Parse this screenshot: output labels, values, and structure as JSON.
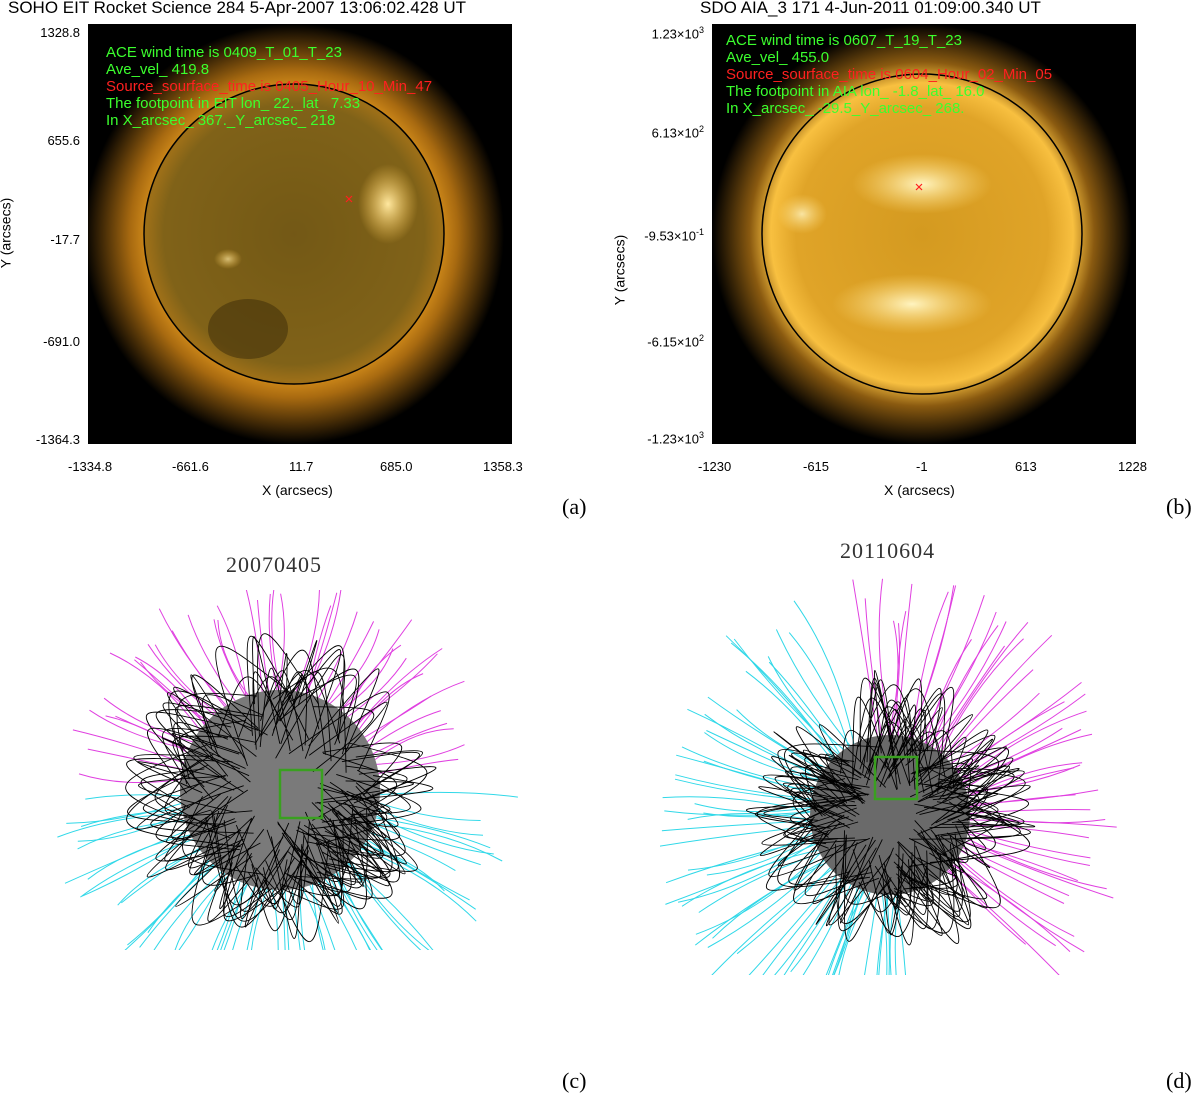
{
  "panel_a": {
    "title": "SOHO EIT Rocket Science 284  5-Apr-2007 13:06:02.428 UT",
    "overlay": [
      {
        "text": "ACE wind time is 0409_T_01_T_23",
        "color": "#3cff2e"
      },
      {
        "text": "Ave_vel_ 419.8",
        "color": "#3cff2e"
      },
      {
        "text": "Source_sourface_time is 0405_Hour_10_Min_47",
        "color": "#ff2020"
      },
      {
        "text": "The footpoint in EIT lon_ 22._lat_ 7.33",
        "color": "#3cff2e"
      },
      {
        "text": "In X_arcsec_ 367._Y_arcsec_ 218",
        "color": "#3cff2e"
      }
    ],
    "y_ticks": [
      "1328.8",
      "655.6",
      "-17.7",
      "-691.0",
      "-1364.3"
    ],
    "x_ticks": [
      "-1334.8",
      "-661.6",
      "11.7",
      "685.0",
      "1358.3"
    ],
    "xlabel": "X (arcsecs)",
    "ylabel": "Y (arcsecs)",
    "letter": "(a)",
    "colors": {
      "sun_core": "#8a6a1a",
      "corona": "#e8a020"
    }
  },
  "panel_b": {
    "title": "SDO AIA_3 171  4-Jun-2011 01:09:00.340 UT",
    "overlay": [
      {
        "text": "ACE wind time is 0607_T_19_T_23",
        "color": "#3cff2e"
      },
      {
        "text": "Ave_vel_ 455.0",
        "color": "#3cff2e"
      },
      {
        "text": "Source_sourface_time is 0604_Hour_02_Min_05",
        "color": "#ff2020"
      },
      {
        "text": "The footpoint in AIA lon_ -1.8_lat_ 16.0",
        "color": "#3cff2e"
      },
      {
        "text": "In X_arcsec_ -29.5_Y_arcsec_ 268.",
        "color": "#3cff2e"
      }
    ],
    "y_ticks": [
      {
        "mant": "1.23",
        "exp": "3"
      },
      {
        "mant": "6.13",
        "exp": "2"
      },
      {
        "mant": "-9.53",
        "exp": "-1"
      },
      {
        "mant": "-6.15",
        "exp": "2"
      },
      {
        "mant": "-1.23",
        "exp": "3"
      }
    ],
    "times_sign": "×10",
    "x_ticks": [
      "-1230",
      "-615",
      "-1",
      "613",
      "1228"
    ],
    "xlabel": "X (arcsecs)",
    "ylabel": "Y (arcsecs)",
    "letter": "(b)",
    "colors": {
      "sun_core": "#d49a20",
      "corona": "#f0b030"
    }
  },
  "panel_c": {
    "date": "20070405",
    "letter": "(c)",
    "colors": {
      "open_north": "#e040e0",
      "open_south": "#30d8e8",
      "closed": "#000000",
      "box": "#3aa020"
    }
  },
  "panel_d": {
    "date": "20110604",
    "letter": "(d)",
    "colors": {
      "open_north": "#e040e0",
      "open_south": "#30d8e8",
      "closed": "#000000",
      "box": "#3aa020"
    }
  }
}
